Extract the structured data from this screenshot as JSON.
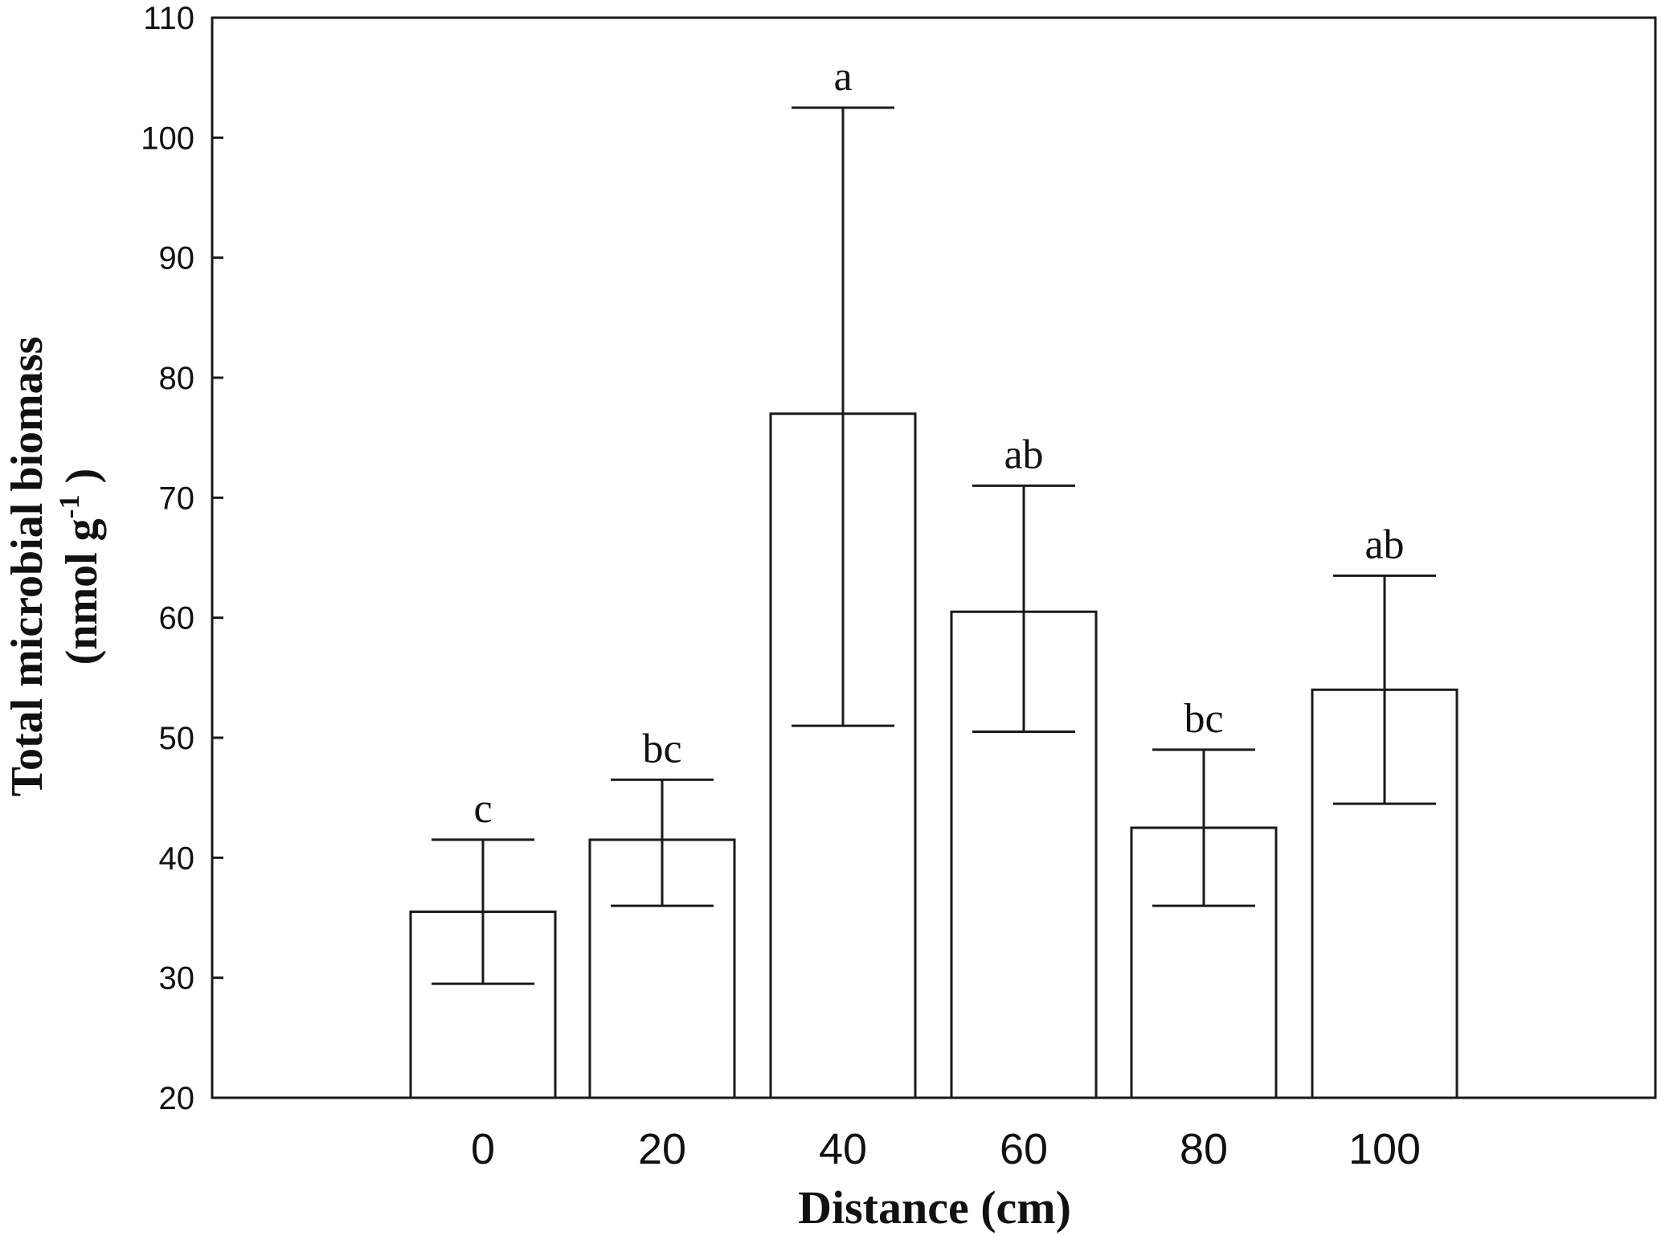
{
  "chart_data": {
    "type": "bar",
    "categories": [
      "0",
      "20",
      "40",
      "60",
      "80",
      "100"
    ],
    "values": [
      35.5,
      41.5,
      77.0,
      60.5,
      42.5,
      54.0
    ],
    "error_upper": [
      41.5,
      46.5,
      102.5,
      71.0,
      49.0,
      63.5
    ],
    "error_lower": [
      29.5,
      36.0,
      51.0,
      50.5,
      36.0,
      44.5
    ],
    "significance_labels": [
      "c",
      "bc",
      "a",
      "ab",
      "bc",
      "ab"
    ],
    "xlabel": "Distance (cm)",
    "ylabel_line1": "Total microbial biomass",
    "ylabel_line2_prefix": "(nmol g",
    "ylabel_superscript": "-1",
    "ylabel_line2_suffix": " )",
    "ylim": [
      20,
      110
    ],
    "yticks": [
      20,
      30,
      40,
      50,
      60,
      70,
      80,
      90,
      100,
      110
    ],
    "grid": false,
    "bar_fill": "#ffffff",
    "stroke_color": "#1a1a1a"
  }
}
